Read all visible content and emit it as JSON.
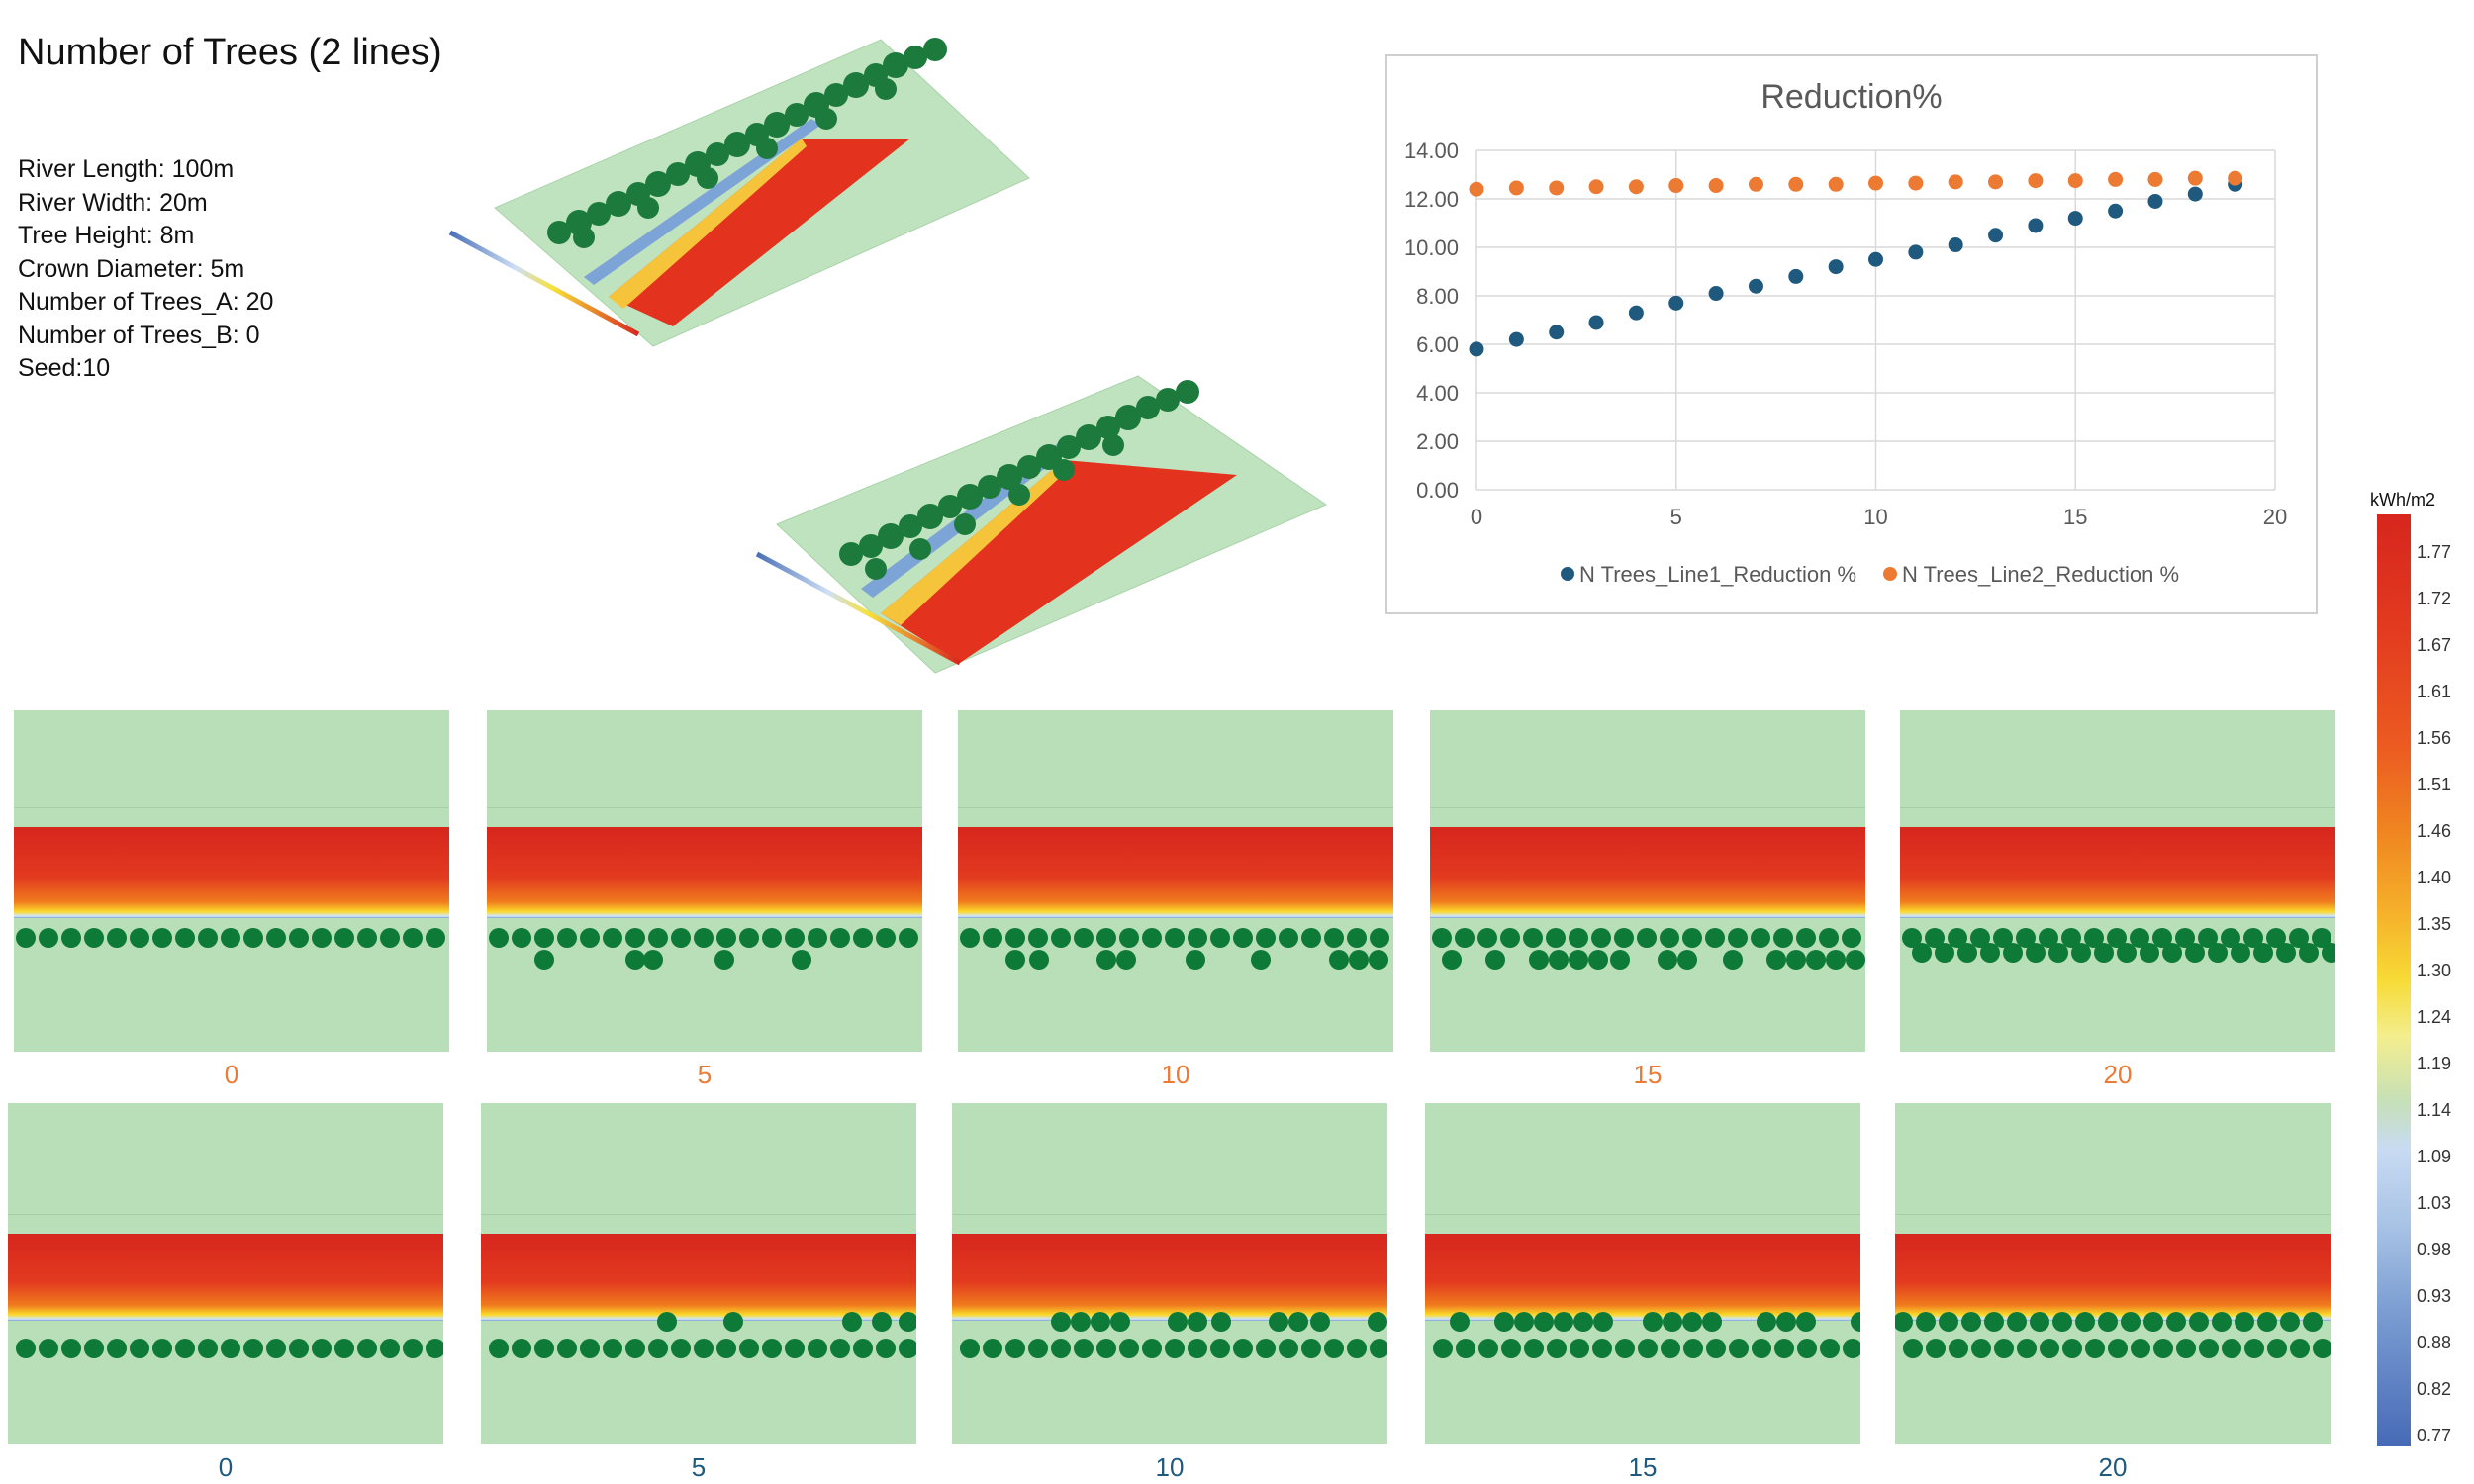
{
  "title": "Number of Trees (2 lines)",
  "params": [
    "River Length: 100m",
    "River Width: 20m",
    "Tree Height: 8m",
    "Crown Diameter: 5m",
    "Number of Trees_A: 20",
    "Number of Trees_B: 0",
    "Seed:10"
  ],
  "colors": {
    "line1": "#1f5a7e",
    "line2": "#ec7a33",
    "grass": "#b9dfb9",
    "tree": "#0e7a38"
  },
  "chart_data": {
    "type": "scatter",
    "title": "Reduction%",
    "x": [
      0,
      1,
      2,
      3,
      4,
      5,
      6,
      7,
      8,
      9,
      10,
      11,
      12,
      13,
      14,
      15,
      16,
      17,
      18,
      19
    ],
    "xlim": [
      0,
      20
    ],
    "ylim": [
      0,
      14
    ],
    "xticks": [
      0,
      5,
      10,
      15,
      20
    ],
    "yticks": [
      "0.00",
      "2.00",
      "4.00",
      "6.00",
      "8.00",
      "10.00",
      "12.00",
      "14.00"
    ],
    "series": [
      {
        "name": "N Trees_Line1_Reduction %",
        "values": [
          5.8,
          6.2,
          6.5,
          6.9,
          7.3,
          7.7,
          8.1,
          8.4,
          8.8,
          9.2,
          9.5,
          9.8,
          10.1,
          10.5,
          10.9,
          11.2,
          11.5,
          11.9,
          12.2,
          12.6
        ]
      },
      {
        "name": "N Trees_Line2_Reduction %",
        "values": [
          12.4,
          12.45,
          12.45,
          12.5,
          12.5,
          12.55,
          12.55,
          12.6,
          12.6,
          12.6,
          12.65,
          12.65,
          12.7,
          12.7,
          12.75,
          12.75,
          12.8,
          12.8,
          12.85,
          12.85
        ]
      }
    ]
  },
  "top_labels": [
    "0",
    "5",
    "10",
    "15",
    "20"
  ],
  "bottom_labels": [
    "0",
    "5",
    "10",
    "15",
    "20"
  ],
  "top_label_color": "#ec7a33",
  "bottom_label_color": "#1f5a7e",
  "legend": {
    "title": "kWh/m2",
    "ticks": [
      "1.77",
      "1.72",
      "1.67",
      "1.61",
      "1.56",
      "1.51",
      "1.46",
      "1.40",
      "1.35",
      "1.30",
      "1.24",
      "1.19",
      "1.14",
      "1.09",
      "1.03",
      "0.98",
      "0.93",
      "0.88",
      "0.82",
      "0.77"
    ]
  }
}
